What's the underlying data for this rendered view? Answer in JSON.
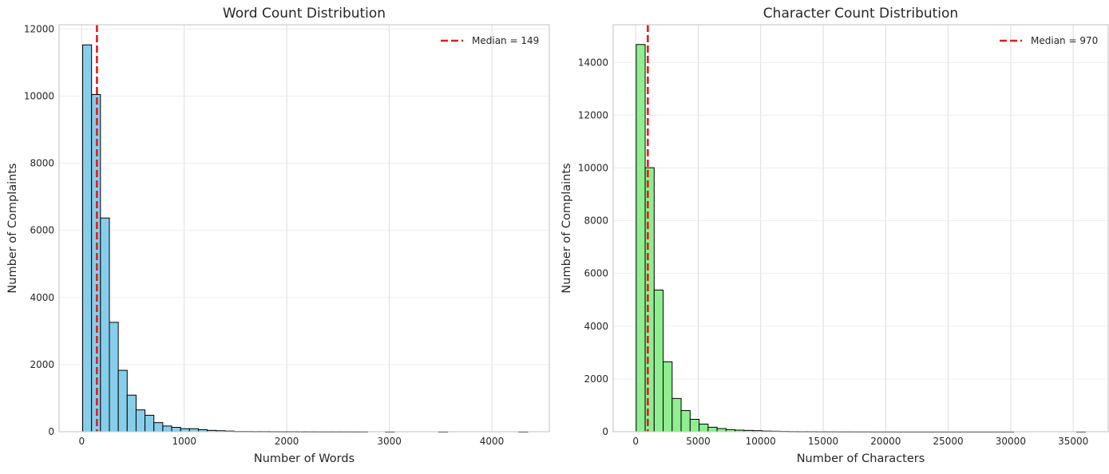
{
  "colors": {
    "word_bars": "#87ceeb",
    "char_bars": "#90ee90",
    "median_line": "#e31a1c",
    "bar_edge": "#000000",
    "grid": "#d9d9d9",
    "spine": "#cccccc"
  },
  "chart_data": [
    {
      "type": "bar",
      "subtype": "histogram",
      "title": "Word Count Distribution",
      "xlabel": "Number of Words",
      "ylabel": "Number of Complaints",
      "xlim": [
        -220,
        4560
      ],
      "ylim": [
        0,
        12130
      ],
      "xticks": [
        0,
        1000,
        2000,
        3000,
        4000
      ],
      "xtick_labels": [
        "0",
        "1000",
        "2000",
        "3000",
        "4000"
      ],
      "yticks": [
        0,
        2000,
        4000,
        6000,
        8000,
        10000,
        12000
      ],
      "ytick_labels": [
        "0",
        "2000",
        "4000",
        "6000",
        "8000",
        "10000",
        "12000"
      ],
      "bin_start": 10,
      "bin_width": 86.8,
      "counts": [
        11530,
        10050,
        6370,
        3260,
        1830,
        1090,
        650,
        490,
        270,
        170,
        130,
        90,
        90,
        60,
        40,
        30,
        20,
        10,
        10,
        8,
        8,
        6,
        5,
        5,
        4,
        4,
        3,
        3,
        3,
        3,
        2,
        2,
        0,
        0,
        1,
        0,
        0,
        0,
        0,
        0,
        1,
        0,
        0,
        0,
        0,
        0,
        0,
        0,
        0,
        1
      ],
      "median": 149,
      "legend": [
        {
          "label": "Median = 149",
          "style": "dashed",
          "color": "#e31a1c"
        }
      ],
      "legend_position": "top-right",
      "grid": true
    },
    {
      "type": "bar",
      "subtype": "histogram",
      "title": "Character Count Distribution",
      "xlabel": "Number of Characters",
      "ylabel": "Number of Complaints",
      "xlim": [
        -1800,
        37800
      ],
      "ylim": [
        0,
        15430
      ],
      "xticks": [
        0,
        5000,
        10000,
        15000,
        20000,
        25000,
        30000,
        35000
      ],
      "xtick_labels": [
        "0",
        "5000",
        "10000",
        "15000",
        "20000",
        "25000",
        "30000",
        "35000"
      ],
      "yticks": [
        0,
        2000,
        4000,
        6000,
        8000,
        10000,
        12000,
        14000
      ],
      "ytick_labels": [
        "0",
        "2000",
        "4000",
        "6000",
        "8000",
        "10000",
        "12000",
        "14000"
      ],
      "bin_start": 40,
      "bin_width": 719,
      "counts": [
        14680,
        10010,
        5370,
        2650,
        1260,
        800,
        470,
        290,
        170,
        120,
        80,
        60,
        50,
        40,
        25,
        20,
        15,
        10,
        8,
        8,
        5,
        5,
        4,
        4,
        3,
        3,
        2,
        2,
        2,
        1,
        1,
        1,
        1,
        1,
        1,
        1,
        1,
        1,
        1,
        1,
        1,
        1,
        0,
        0,
        0,
        0,
        0,
        0,
        0,
        1
      ],
      "median": 970,
      "legend": [
        {
          "label": "Median = 970",
          "style": "dashed",
          "color": "#e31a1c"
        }
      ],
      "legend_position": "top-right",
      "grid": true
    }
  ]
}
